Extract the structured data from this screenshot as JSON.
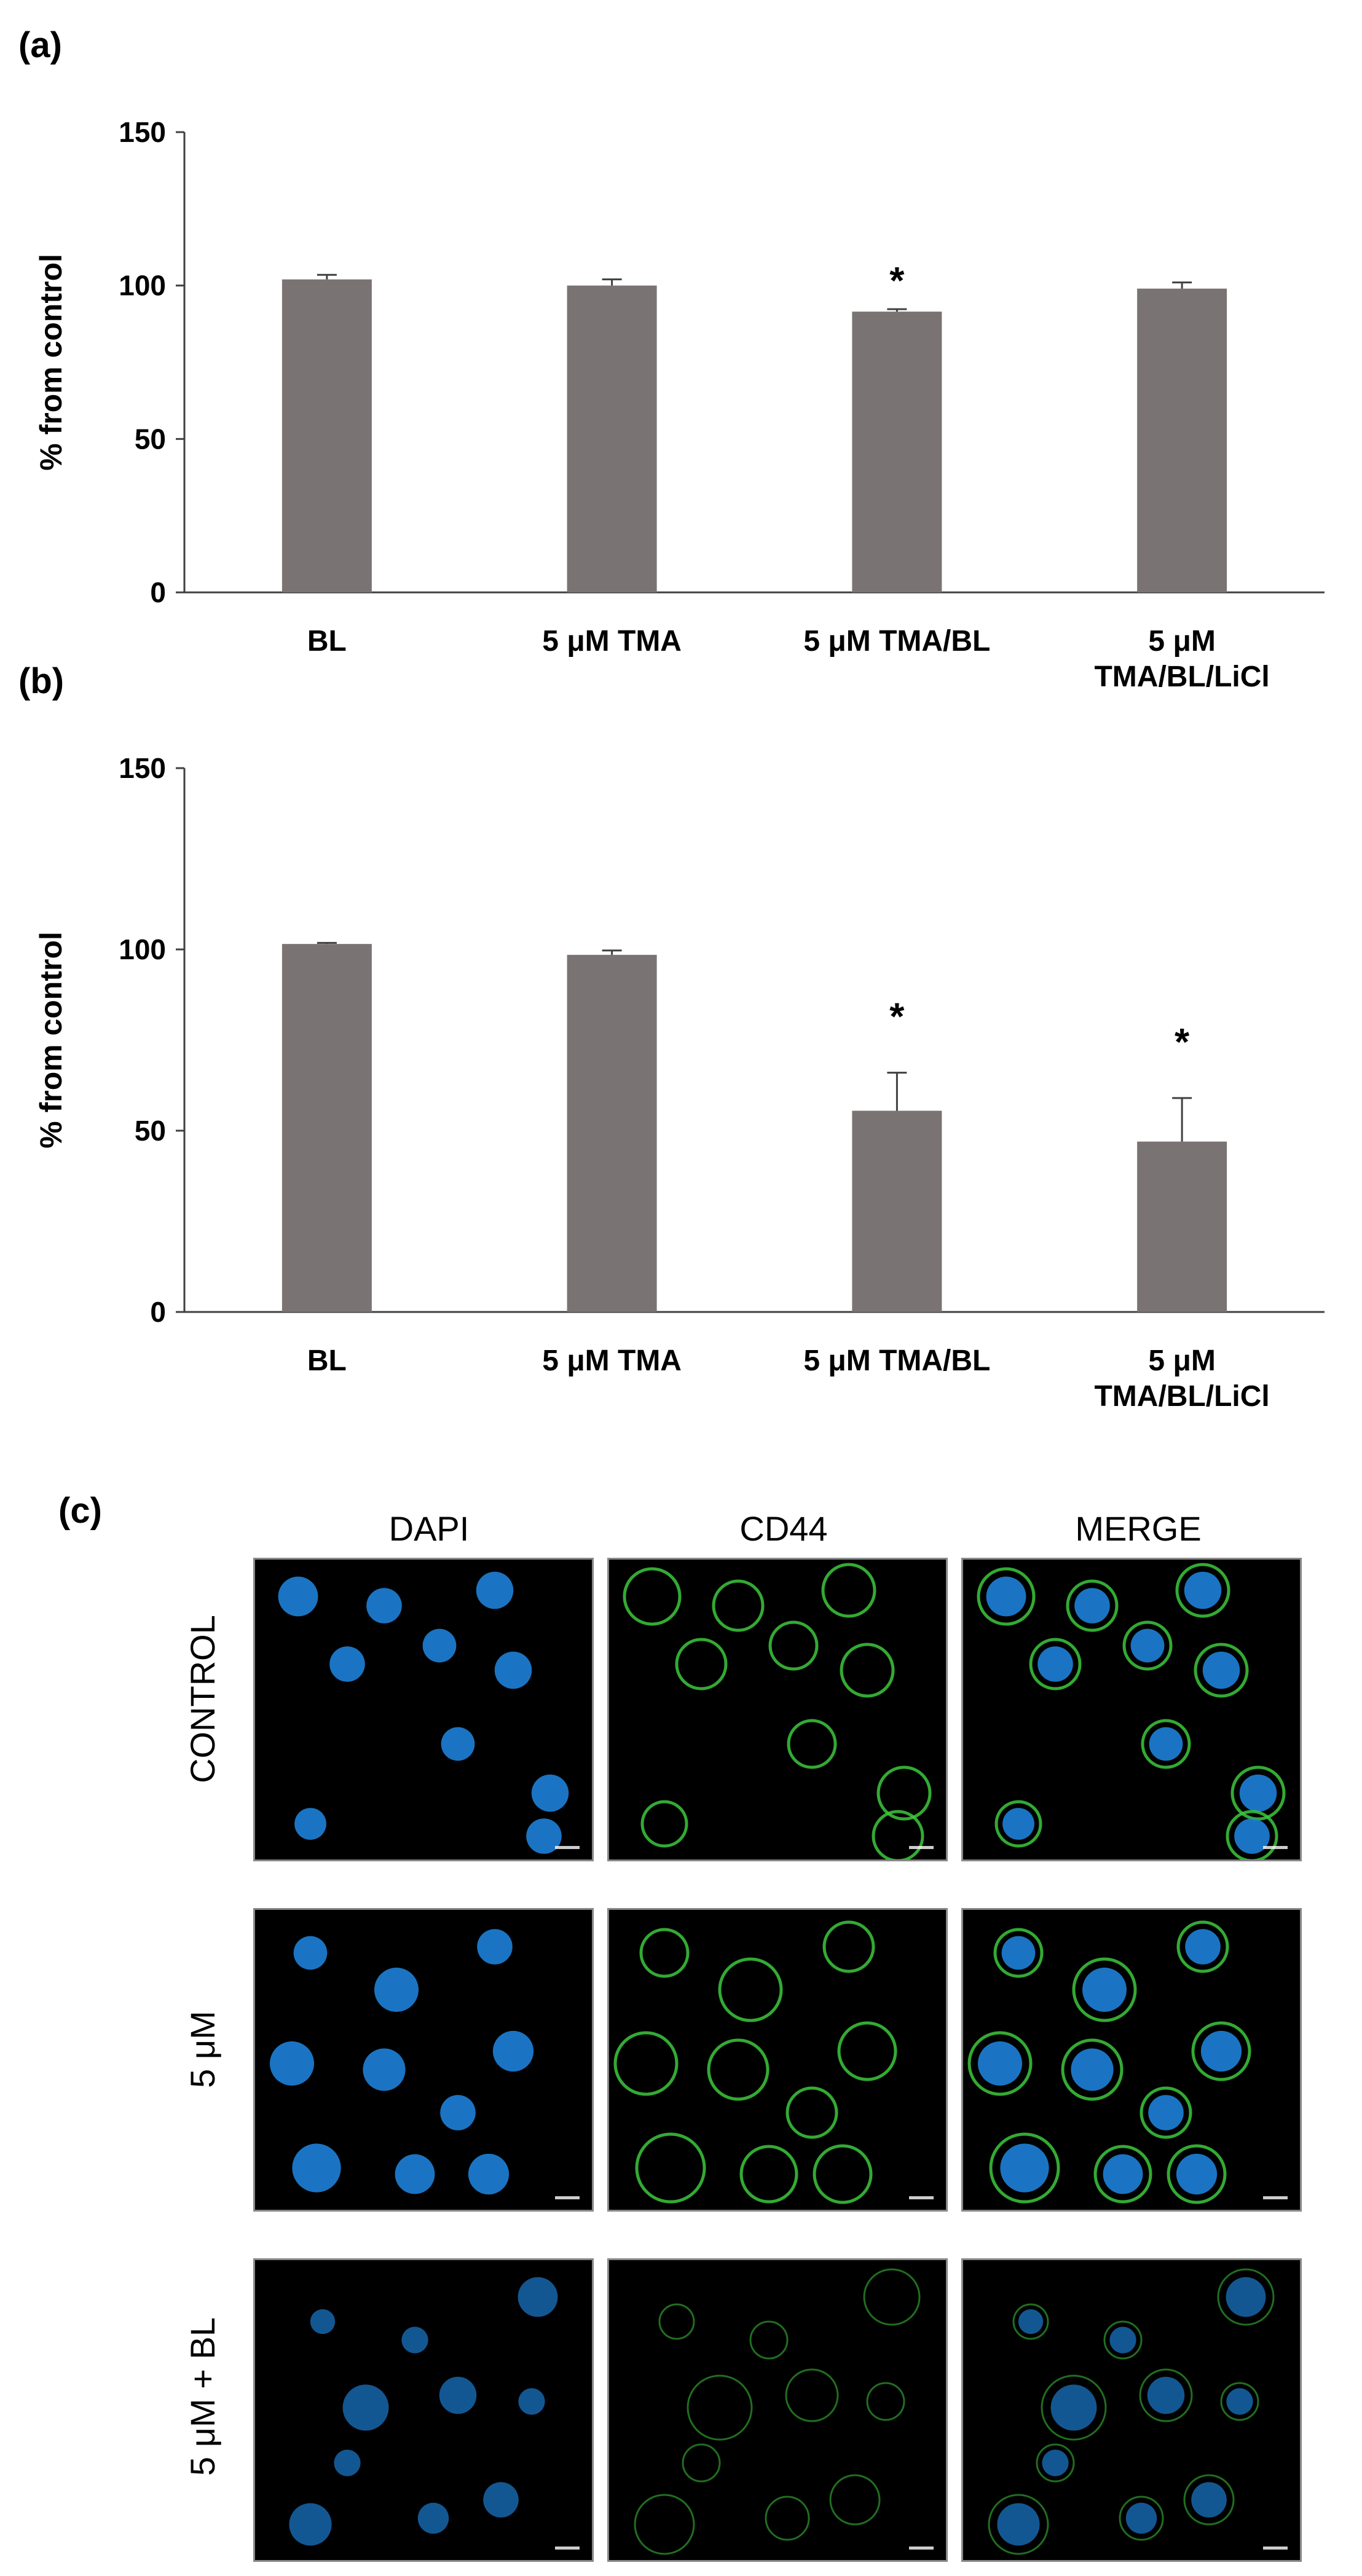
{
  "panels": {
    "a": "(a)",
    "b": "(b)",
    "c": "(c)"
  },
  "colors": {
    "bar": "#7a7374",
    "axis": "#404040",
    "dapi": "#1e88e5",
    "cd44": "#3cc83c"
  },
  "chart_data": [
    {
      "type": "bar",
      "panel": "(a)",
      "categories": [
        "BL",
        "5 μM TMA",
        "5 μM TMA/BL",
        "5 μM TMA/BL/LiCl"
      ],
      "category_lines": [
        [
          "BL"
        ],
        [
          "5 μM TMA"
        ],
        [
          "5 μM TMA/BL"
        ],
        [
          "5 μM",
          "TMA/BL/LiCl"
        ]
      ],
      "values": [
        102,
        100,
        91.5,
        99
      ],
      "errors": [
        1.5,
        2,
        0.8,
        2
      ],
      "significance": [
        "",
        "",
        "*",
        ""
      ],
      "ylabel": "% from control",
      "ylim": [
        0,
        150
      ],
      "yticks": [
        0,
        50,
        100,
        150
      ],
      "grid": false
    },
    {
      "type": "bar",
      "panel": "(b)",
      "categories": [
        "BL",
        "5 μM TMA",
        "5 μM TMA/BL",
        "5 μM TMA/BL/LiCl"
      ],
      "category_lines": [
        [
          "BL"
        ],
        [
          "5 μM TMA"
        ],
        [
          "5 μM TMA/BL"
        ],
        [
          "5 μM",
          "TMA/BL/LiCl"
        ]
      ],
      "values": [
        101.5,
        98.5,
        55.5,
        47
      ],
      "errors": [
        0.3,
        1.2,
        10.5,
        12
      ],
      "significance": [
        "",
        "",
        "*",
        "*"
      ],
      "ylabel": "% from control",
      "ylim": [
        0,
        150
      ],
      "yticks": [
        0,
        50,
        100,
        150
      ],
      "grid": false
    }
  ],
  "micrographs": {
    "columns": [
      "DAPI",
      "CD44",
      "MERGE"
    ],
    "rows": [
      "CONTROL",
      "5 μM",
      "5 μM + BL"
    ]
  }
}
